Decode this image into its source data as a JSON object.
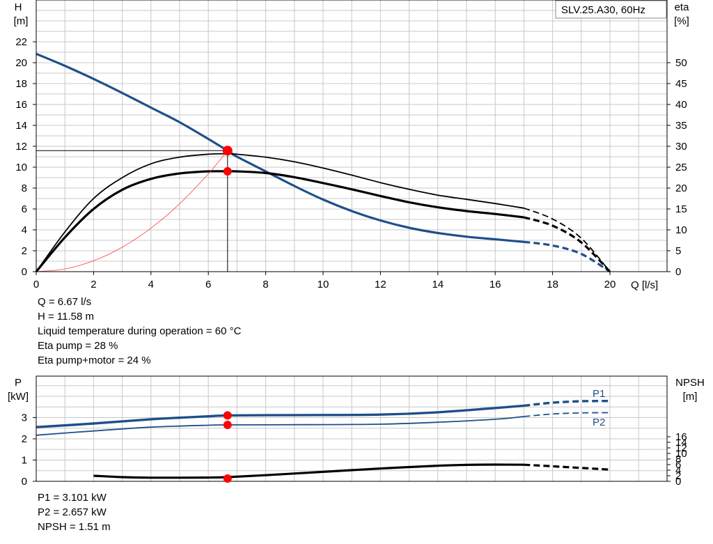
{
  "chart_data": [
    {
      "type": "line",
      "legend_box": "SLV.25.A30, 60Hz",
      "ylabel_left": "H",
      "ylabel_left_unit": "[m]",
      "ylabel_right": "eta",
      "ylabel_right_unit": "[%]",
      "xlabel": "Q [l/s]",
      "xlim": [
        0,
        20
      ],
      "ylim_left": [
        0,
        24
      ],
      "ylim_right": [
        0,
        60
      ],
      "x_ticks": [
        "0",
        "2",
        "4",
        "6",
        "8",
        "10",
        "12",
        "14",
        "16",
        "18",
        "20"
      ],
      "y_left_ticks": [
        "0",
        "2",
        "4",
        "6",
        "8",
        "10",
        "12",
        "14",
        "16",
        "18",
        "20",
        "22"
      ],
      "y_right_ticks": [
        "0",
        "5",
        "10",
        "15",
        "20",
        "25",
        "30",
        "35",
        "40",
        "45",
        "50"
      ],
      "grid": true,
      "series": [
        {
          "axis": "left",
          "color": "#1e4f8a",
          "points": [
            [
              0,
              20.85
            ],
            [
              1,
              19.7
            ],
            [
              2,
              18.45
            ],
            [
              3,
              17.1
            ],
            [
              4,
              15.7
            ],
            [
              5,
              14.3
            ],
            [
              6,
              12.7
            ],
            [
              6.67,
              11.58
            ],
            [
              7,
              11.0
            ],
            [
              8,
              9.6
            ],
            [
              9,
              8.2
            ],
            [
              10,
              6.9
            ],
            [
              11,
              5.8
            ],
            [
              12,
              4.9
            ],
            [
              13,
              4.2
            ],
            [
              14,
              3.7
            ],
            [
              15,
              3.35
            ],
            [
              16,
              3.1
            ],
            [
              17,
              2.85
            ]
          ],
          "dashed_points": [
            [
              17,
              2.85
            ],
            [
              18,
              2.5
            ],
            [
              19,
              1.7
            ],
            [
              20,
              0
            ]
          ]
        },
        {
          "axis": "right",
          "color": "#000000",
          "points": [
            [
              0,
              0
            ],
            [
              1,
              9.5
            ],
            [
              2,
              17.5
            ],
            [
              3,
              22.5
            ],
            [
              4,
              25.8
            ],
            [
              5,
              27.4
            ],
            [
              6,
              28.1
            ],
            [
              6.67,
              28.2
            ],
            [
              7,
              28.1
            ],
            [
              8,
              27.4
            ],
            [
              9,
              26.3
            ],
            [
              10,
              24.8
            ],
            [
              11,
              23.1
            ],
            [
              12,
              21.3
            ],
            [
              13,
              19.7
            ],
            [
              14,
              18.3
            ],
            [
              15,
              17.3
            ],
            [
              16,
              16.3
            ],
            [
              17,
              15.2
            ]
          ],
          "dashed_points": [
            [
              17,
              15.2
            ],
            [
              18,
              12.6
            ],
            [
              19,
              8.0
            ],
            [
              20,
              0
            ]
          ]
        },
        {
          "axis": "right",
          "color": "#000000",
          "bold": true,
          "points": [
            [
              0,
              0
            ],
            [
              1,
              8.2
            ],
            [
              2,
              15.0
            ],
            [
              3,
              19.6
            ],
            [
              4,
              22.2
            ],
            [
              5,
              23.5
            ],
            [
              6,
              24.0
            ],
            [
              6.67,
              24.0
            ],
            [
              7,
              24.0
            ],
            [
              8,
              23.6
            ],
            [
              9,
              22.6
            ],
            [
              10,
              21.2
            ],
            [
              11,
              19.7
            ],
            [
              12,
              18.1
            ],
            [
              13,
              16.6
            ],
            [
              14,
              15.4
            ],
            [
              15,
              14.5
            ],
            [
              16,
              13.8
            ],
            [
              17,
              13.0
            ]
          ],
          "dashed_points": [
            [
              17,
              13.0
            ],
            [
              18,
              11.0
            ],
            [
              19,
              7.0
            ],
            [
              20,
              0
            ]
          ]
        },
        {
          "axis": "left",
          "color": "#ff4040",
          "system_curve": true,
          "points": [
            [
              0,
              0
            ],
            [
              1,
              0.26
            ],
            [
              2,
              1.04
            ],
            [
              3,
              2.34
            ],
            [
              4,
              4.16
            ],
            [
              5,
              6.5
            ],
            [
              6,
              9.36
            ],
            [
              6.67,
              11.58
            ]
          ]
        }
      ],
      "duty_point": {
        "x": 6.67,
        "h": 11.58,
        "eta_pump": 28,
        "eta_total": 24
      }
    },
    {
      "type": "line",
      "ylabel_left": "P",
      "ylabel_left_unit": "[kW]",
      "ylabel_right": "NPSH",
      "ylabel_right_unit": "[m]",
      "xlim": [
        0,
        20
      ],
      "ylim_left": [
        0,
        4
      ],
      "ylim_right": [
        0,
        22
      ],
      "y_left_ticks": [
        "0",
        "1",
        "2",
        "3"
      ],
      "y_right_ticks": [
        "0",
        "2",
        "4",
        "6",
        "8",
        "10",
        "12",
        "14",
        "16"
      ],
      "grid": true,
      "series": [
        {
          "name": "P1",
          "axis": "left",
          "color": "#1e4f8a",
          "points": [
            [
              0,
              2.55
            ],
            [
              2,
              2.72
            ],
            [
              4,
              2.92
            ],
            [
              6,
              3.06
            ],
            [
              6.67,
              3.101
            ],
            [
              8,
              3.11
            ],
            [
              10,
              3.12
            ],
            [
              12,
              3.14
            ],
            [
              14,
              3.25
            ],
            [
              16,
              3.45
            ],
            [
              17,
              3.56
            ]
          ],
          "dashed_points": [
            [
              17,
              3.56
            ],
            [
              18,
              3.7
            ],
            [
              19,
              3.77
            ],
            [
              20,
              3.78
            ]
          ]
        },
        {
          "name": "P2",
          "axis": "left",
          "color": "#1e4f8a",
          "points": [
            [
              0,
              2.17
            ],
            [
              2,
              2.37
            ],
            [
              4,
              2.55
            ],
            [
              6,
              2.64
            ],
            [
              6.67,
              2.657
            ],
            [
              8,
              2.66
            ],
            [
              10,
              2.67
            ],
            [
              12,
              2.69
            ],
            [
              14,
              2.78
            ],
            [
              16,
              2.92
            ],
            [
              17,
              3.05
            ]
          ],
          "dashed_points": [
            [
              17,
              3.05
            ],
            [
              18,
              3.17
            ],
            [
              19,
              3.22
            ],
            [
              20,
              3.23
            ]
          ]
        },
        {
          "axis": "right",
          "color": "#000000",
          "bold": true,
          "points": [
            [
              2,
              2.0
            ],
            [
              3,
              1.5
            ],
            [
              4,
              1.3
            ],
            [
              5,
              1.3
            ],
            [
              6,
              1.35
            ],
            [
              6.67,
              1.51
            ],
            [
              8,
              2.2
            ],
            [
              10,
              3.4
            ],
            [
              12,
              4.6
            ],
            [
              14,
              5.6
            ],
            [
              15,
              5.9
            ],
            [
              16,
              6.0
            ],
            [
              17,
              5.95
            ]
          ],
          "dashed_points": [
            [
              17,
              5.95
            ],
            [
              18,
              5.4
            ],
            [
              19,
              4.8
            ],
            [
              20,
              4.2
            ]
          ]
        }
      ],
      "duty_point": {
        "x": 6.67,
        "p1": 3.101,
        "p2": 2.657,
        "npsh": 1.51
      }
    }
  ],
  "info_top": [
    "Q = 6.67 l/s",
    "H = 11.58 m",
    "Liquid temperature during operation = 60 °C",
    "Eta pump = 28 %",
    "Eta pump+motor = 24 %"
  ],
  "info_bottom": [
    "P1 = 3.101 kW",
    "P2 = 2.657 kW",
    "NPSH = 1.51 m"
  ],
  "colors": {
    "pump_blue": "#1e4f8a",
    "system_red": "#ff4040",
    "point_red": "#ff0000",
    "point_yellow": "#ffe04a",
    "grid": "#c8c8c8"
  }
}
